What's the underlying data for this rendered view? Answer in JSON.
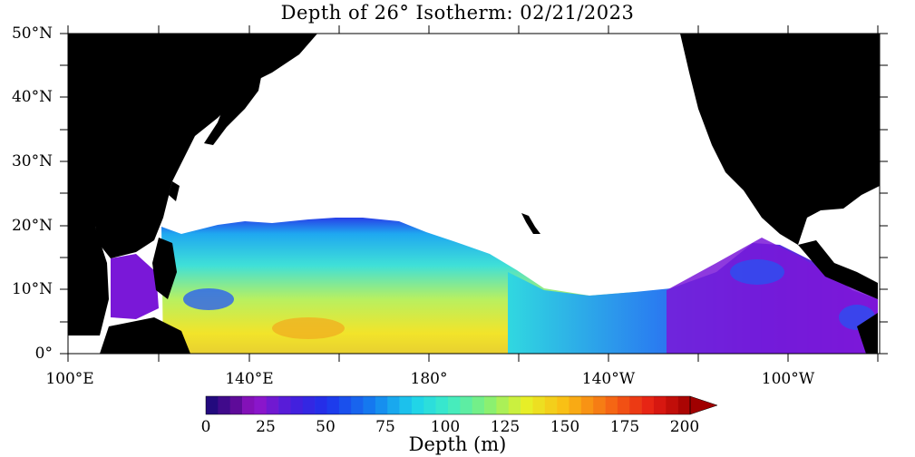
{
  "map": {
    "title": "Depth of 26° Isotherm: 02/21/2023",
    "lat_labels": [
      "50°N",
      "40°N",
      "30°N",
      "20°N",
      "10°N",
      "0°"
    ],
    "lon_labels": [
      "100°E",
      "140°E",
      "180°",
      "140°W",
      "100°W"
    ],
    "colorbar": {
      "tick_labels": [
        "0",
        "25",
        "50",
        "75",
        "100",
        "125",
        "150",
        "175",
        "200"
      ],
      "label": "Depth (m)",
      "min": 0,
      "max": 200
    },
    "colors": {
      "land": "#000000",
      "no_data": "#ffffff",
      "shallow": "#7a10d8",
      "mid": "#26c6e8",
      "deep": "#f4e61a",
      "deepest": "#c00000"
    }
  }
}
